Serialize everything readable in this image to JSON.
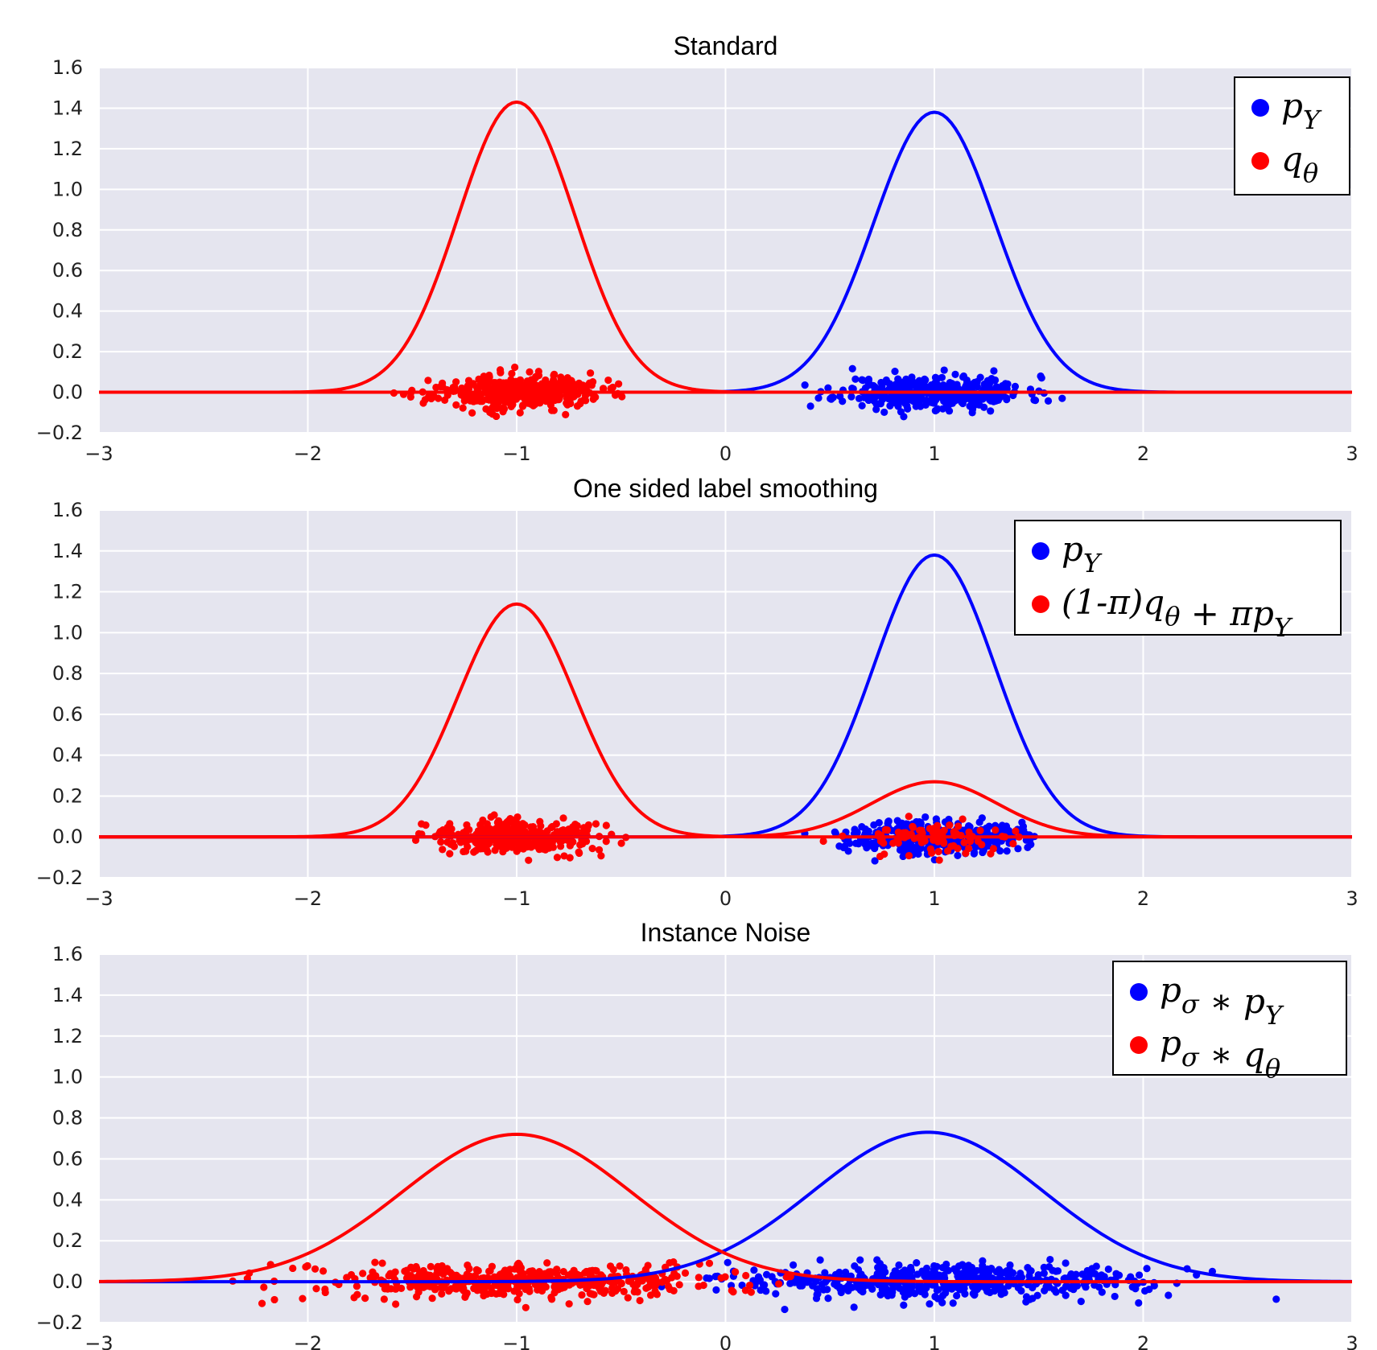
{
  "colors": {
    "blue": "#0000ff",
    "red": "#ff0000",
    "panel_bg": "#e5e5ef",
    "grid": "#ffffff"
  },
  "chart_data": [
    {
      "type": "line+scatter",
      "title": "Standard",
      "xlim": [
        -3,
        3
      ],
      "ylim": [
        -0.2,
        1.6
      ],
      "xticks": [
        -3,
        -2,
        -1,
        0,
        1,
        2,
        3
      ],
      "xtick_labels": [
        "−3",
        "−2",
        "−1",
        "0",
        "1",
        "2",
        "3"
      ],
      "yticks": [
        -0.2,
        0.0,
        0.2,
        0.4,
        0.6,
        0.8,
        1.0,
        1.2,
        1.4,
        1.6
      ],
      "ytick_labels": [
        "−0.2",
        "0.0",
        "0.2",
        "0.4",
        "0.6",
        "0.8",
        "1.0",
        "1.2",
        "1.4",
        "1.6"
      ],
      "legend": {
        "position": "top-right",
        "entries": [
          {
            "color": "blue",
            "label_main": "p",
            "label_sub": "Y"
          },
          {
            "color": "red",
            "label_main": "q",
            "label_sub": "θ"
          }
        ]
      },
      "series": [
        {
          "name": "blue density",
          "color": "blue",
          "kind": "gaussian",
          "mean": 1.0,
          "sigma": 0.29,
          "peak": 1.38
        },
        {
          "name": "red density",
          "color": "red",
          "kind": "gaussian",
          "mean": -1.0,
          "sigma": 0.28,
          "peak": 1.43
        },
        {
          "name": "red density near blue mode",
          "color": "red",
          "kind": "gaussian",
          "mean": 1.0,
          "sigma": 0.3,
          "peak": 0.0
        },
        {
          "name": "blue samples",
          "color": "blue",
          "kind": "scatter",
          "center": 1.0,
          "spread": 0.22,
          "y_spread": 0.04,
          "count": 400,
          "seed": 11
        },
        {
          "name": "red samples",
          "color": "red",
          "kind": "scatter",
          "center": -1.0,
          "spread": 0.2,
          "y_spread": 0.04,
          "count": 400,
          "seed": 23
        }
      ]
    },
    {
      "type": "line+scatter",
      "title": "One sided label smoothing",
      "xlim": [
        -3,
        3
      ],
      "ylim": [
        -0.2,
        1.6
      ],
      "xticks": [
        -3,
        -2,
        -1,
        0,
        1,
        2,
        3
      ],
      "xtick_labels": [
        "−3",
        "−2",
        "−1",
        "0",
        "1",
        "2",
        "3"
      ],
      "yticks": [
        -0.2,
        0.0,
        0.2,
        0.4,
        0.6,
        0.8,
        1.0,
        1.2,
        1.4,
        1.6
      ],
      "ytick_labels": [
        "−0.2",
        "0.0",
        "0.2",
        "0.4",
        "0.6",
        "0.8",
        "1.0",
        "1.2",
        "1.4",
        "1.6"
      ],
      "legend": {
        "position": "top-right",
        "entries": [
          {
            "color": "blue",
            "label_main": "p",
            "label_sub": "Y"
          },
          {
            "color": "red",
            "label_main": "(1-π)q",
            "label_sub": "θ",
            "label_rest": " + πp",
            "label_sub2": "Y"
          }
        ]
      },
      "series": [
        {
          "name": "blue density",
          "color": "blue",
          "kind": "gaussian",
          "mean": 1.0,
          "sigma": 0.29,
          "peak": 1.38
        },
        {
          "name": "red density left",
          "color": "red",
          "kind": "gaussian",
          "mean": -1.0,
          "sigma": 0.28,
          "peak": 1.14
        },
        {
          "name": "red density right",
          "color": "red",
          "kind": "gaussian",
          "mean": 1.0,
          "sigma": 0.3,
          "peak": 0.27
        },
        {
          "name": "blue samples",
          "color": "blue",
          "kind": "scatter",
          "center": 1.0,
          "spread": 0.2,
          "y_spread": 0.04,
          "count": 400,
          "seed": 37
        },
        {
          "name": "red samples left",
          "color": "red",
          "kind": "scatter",
          "center": -1.0,
          "spread": 0.2,
          "y_spread": 0.04,
          "count": 380,
          "seed": 41
        },
        {
          "name": "red samples right",
          "color": "red",
          "kind": "scatter",
          "center": 1.0,
          "spread": 0.2,
          "y_spread": 0.04,
          "count": 90,
          "seed": 53
        }
      ]
    },
    {
      "type": "line+scatter",
      "title": "Instance Noise",
      "xlim": [
        -3,
        3
      ],
      "ylim": [
        -0.2,
        1.6
      ],
      "xticks": [
        -3,
        -2,
        -1,
        0,
        1,
        2,
        3
      ],
      "xtick_labels": [
        "−3",
        "−2",
        "−1",
        "0",
        "1",
        "2",
        "3"
      ],
      "yticks": [
        -0.2,
        0.0,
        0.2,
        0.4,
        0.6,
        0.8,
        1.0,
        1.2,
        1.4,
        1.6
      ],
      "ytick_labels": [
        "−0.2",
        "0.0",
        "0.2",
        "0.4",
        "0.6",
        "0.8",
        "1.0",
        "1.2",
        "1.4",
        "1.6"
      ],
      "legend": {
        "position": "top-right",
        "entries": [
          {
            "color": "blue",
            "label_main": "p",
            "label_sub": "σ",
            "label_rest": " ∗ p",
            "label_sub2": "Y"
          },
          {
            "color": "red",
            "label_main": "p",
            "label_sub": "σ",
            "label_rest": " ∗ q",
            "label_sub2": "θ"
          }
        ]
      },
      "series": [
        {
          "name": "blue density",
          "color": "blue",
          "kind": "gaussian",
          "mean": 0.97,
          "sigma": 0.55,
          "peak": 0.73
        },
        {
          "name": "red density",
          "color": "red",
          "kind": "gaussian",
          "mean": -1.0,
          "sigma": 0.55,
          "peak": 0.72
        },
        {
          "name": "blue samples",
          "color": "blue",
          "kind": "scatter",
          "center": 1.0,
          "spread": 0.48,
          "y_spread": 0.04,
          "count": 500,
          "seed": 67
        },
        {
          "name": "red samples",
          "color": "red",
          "kind": "scatter",
          "center": -1.0,
          "spread": 0.48,
          "y_spread": 0.04,
          "count": 500,
          "seed": 71
        }
      ]
    }
  ]
}
